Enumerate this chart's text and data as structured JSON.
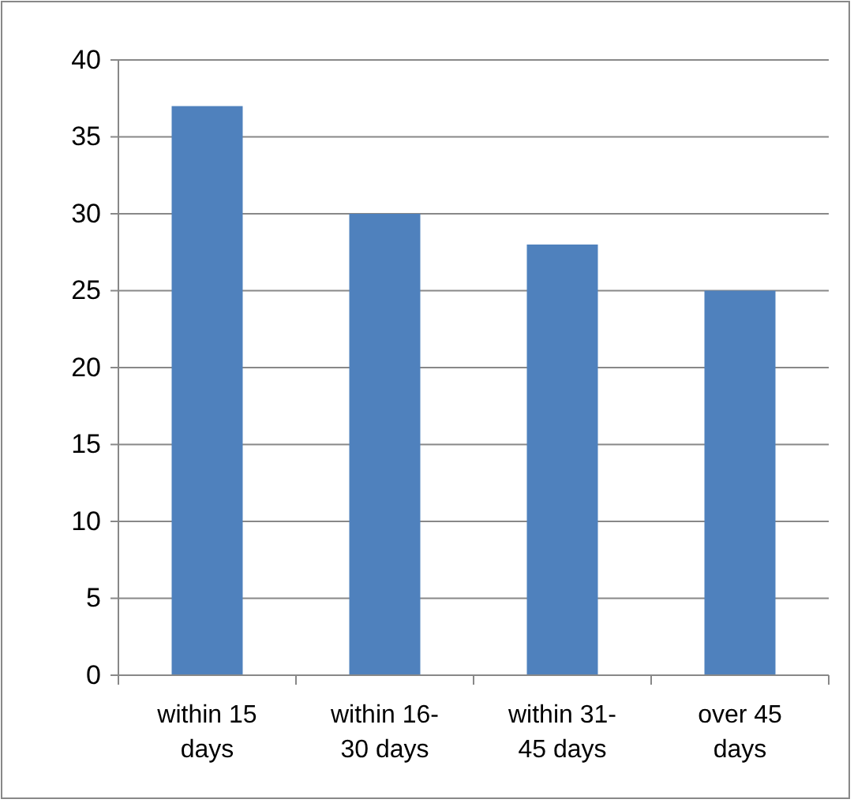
{
  "chart_data": {
    "type": "bar",
    "categories": [
      "within 15 days",
      "within 16-30 days",
      "within 31-45 days",
      "over 45 days"
    ],
    "values": [
      37,
      30,
      28,
      25
    ],
    "color": "#4f81bd",
    "ylim": [
      0,
      40
    ],
    "yticks": [
      0,
      5,
      10,
      15,
      20,
      25,
      30,
      35,
      40
    ],
    "grid": "y"
  }
}
